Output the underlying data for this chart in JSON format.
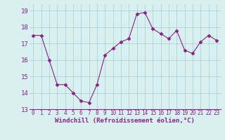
{
  "x": [
    0,
    1,
    2,
    3,
    4,
    5,
    6,
    7,
    8,
    9,
    10,
    11,
    12,
    13,
    14,
    15,
    16,
    17,
    18,
    19,
    20,
    21,
    22,
    23
  ],
  "y": [
    17.5,
    17.5,
    16.0,
    14.5,
    14.5,
    14.0,
    13.5,
    13.4,
    14.5,
    16.3,
    16.7,
    17.1,
    17.3,
    18.8,
    18.9,
    17.9,
    17.6,
    17.3,
    17.8,
    16.6,
    16.4,
    17.1,
    17.5,
    17.2
  ],
  "line_color": "#882288",
  "marker": "D",
  "markersize": 2.5,
  "linewidth": 0.8,
  "bg_color": "#d8f0f0",
  "grid_color": "#aacccc",
  "xlabel": "Windchill (Refroidissement éolien,°C)",
  "xlabel_color": "#882288",
  "ylim": [
    13.0,
    19.4
  ],
  "yticks": [
    13,
    14,
    15,
    16,
    17,
    18,
    19
  ],
  "xticks": [
    0,
    1,
    2,
    3,
    4,
    5,
    6,
    7,
    8,
    9,
    10,
    11,
    12,
    13,
    14,
    15,
    16,
    17,
    18,
    19,
    20,
    21,
    22,
    23
  ],
  "tick_color": "#882288",
  "xtick_fontsize": 5.5,
  "ytick_fontsize": 6.5
}
